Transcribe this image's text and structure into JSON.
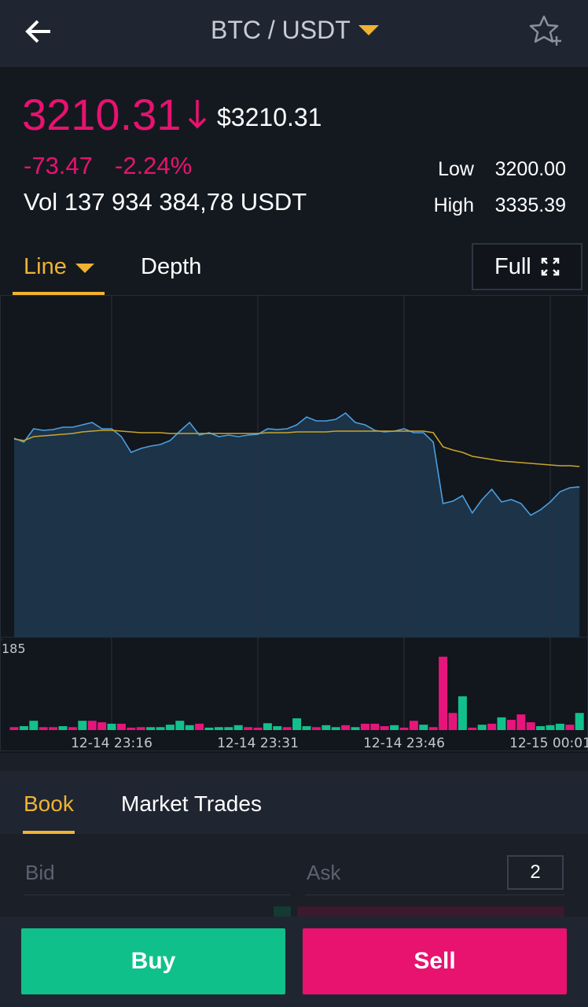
{
  "header": {
    "title": "BTC / USDT"
  },
  "ticker": {
    "price": "3210.31",
    "price_usd": "$3210.31",
    "change": "-73.47",
    "change_pct": "-2.24%",
    "volume": "Vol 137 934 384,78 USDT",
    "low_label": "Low",
    "low": "3200.00",
    "high_label": "High",
    "high": "3335.39"
  },
  "chart_tabs": {
    "line": "Line",
    "depth": "Depth",
    "full": "Full"
  },
  "chart_data": [
    {
      "type": "line",
      "area": true,
      "categories": [
        null,
        null,
        null,
        null,
        null,
        null,
        null,
        null,
        null,
        null,
        "12-14 23:16",
        null,
        null,
        null,
        null,
        null,
        null,
        null,
        null,
        null,
        null,
        null,
        null,
        null,
        null,
        "12-14 23:31",
        null,
        null,
        null,
        null,
        null,
        null,
        null,
        null,
        null,
        null,
        null,
        null,
        null,
        null,
        "12-14 23:46",
        null,
        null,
        null,
        null,
        null,
        null,
        null,
        null,
        null,
        null,
        null,
        null,
        null,
        null,
        "12-15 00:01",
        null,
        null,
        null
      ],
      "ylim": [
        3162.5,
        3271.25
      ],
      "series": [
        {
          "color": "#4a9fe0",
          "fill": "#1c3348",
          "values": [
            3225.75,
            3224.5,
            3228.75,
            3228.25,
            3228.5,
            3229.25,
            3229.25,
            3230,
            3230.75,
            3228.75,
            3228.75,
            3226.25,
            3221.25,
            3222.5,
            3223.25,
            3223.75,
            3225,
            3228,
            3230.75,
            3226.75,
            3227.5,
            3226.25,
            3226.75,
            3226.25,
            3226.75,
            3227,
            3228.75,
            3228.5,
            3228.75,
            3230,
            3232.5,
            3231.25,
            3231.25,
            3231.75,
            3233.75,
            3230.75,
            3230,
            3228.25,
            3227.75,
            3228,
            3228.75,
            3227.5,
            3227.5,
            3224.5,
            3205,
            3205.75,
            3207.5,
            3202,
            3206.25,
            3209.5,
            3205.5,
            3206.25,
            3205,
            3201.25,
            3203,
            3205.5,
            3208.75,
            3210,
            3210.31
          ]
        },
        {
          "color": "#c9a52c",
          "values": [
            3225.5,
            3225,
            3226.25,
            3226.5,
            3226.75,
            3227,
            3227.25,
            3227.75,
            3228,
            3228.25,
            3228.25,
            3228,
            3227.75,
            3227.5,
            3227.5,
            3227.5,
            3227.25,
            3227.25,
            3227.25,
            3227.25,
            3227.25,
            3227.25,
            3227.25,
            3227.25,
            3227.25,
            3227.25,
            3227.5,
            3227.5,
            3227.5,
            3227.75,
            3227.75,
            3227.75,
            3227.75,
            3228,
            3228,
            3228,
            3228,
            3228,
            3228,
            3228,
            3228,
            3228,
            3228,
            3227.5,
            3223,
            3222,
            3221.25,
            3220,
            3219.5,
            3219,
            3218.5,
            3218.25,
            3218,
            3217.75,
            3217.5,
            3217.25,
            3217,
            3217,
            3216.75
          ]
        }
      ]
    },
    {
      "type": "bar",
      "ylim": [
        0,
        185
      ],
      "yticks": [
        185
      ],
      "values": [
        6,
        8,
        19,
        6,
        6,
        8,
        6,
        19,
        19,
        16,
        13,
        13,
        5,
        6,
        6,
        6,
        11,
        19,
        10,
        13,
        5,
        6,
        6,
        10,
        6,
        5,
        14,
        8,
        6,
        24,
        8,
        6,
        10,
        6,
        10,
        6,
        13,
        13,
        8,
        10,
        5,
        19,
        11,
        6,
        150,
        35,
        69,
        5,
        11,
        13,
        26,
        21,
        32,
        16,
        8,
        10,
        13,
        11,
        35
      ],
      "colors": [
        "#e6157b",
        "#12c08b",
        "#12c08b",
        "#e6157b",
        "#e6157b",
        "#12c08b",
        "#e6157b",
        "#12c08b",
        "#e6157b",
        "#e6157b",
        "#12c08b",
        "#e6157b",
        "#e6157b",
        "#e6157b",
        "#12c08b",
        "#12c08b",
        "#12c08b",
        "#12c08b",
        "#12c08b",
        "#e6157b",
        "#12c08b",
        "#12c08b",
        "#12c08b",
        "#12c08b",
        "#e6157b",
        "#e6157b",
        "#12c08b",
        "#12c08b",
        "#e6157b",
        "#12c08b",
        "#12c08b",
        "#e6157b",
        "#12c08b",
        "#12c08b",
        "#e6157b",
        "#12c08b",
        "#e6157b",
        "#e6157b",
        "#e6157b",
        "#12c08b",
        "#e6157b",
        "#e6157b",
        "#12c08b",
        "#e6157b",
        "#e6157b",
        "#e6157b",
        "#12c08b",
        "#e6157b",
        "#12c08b",
        "#e6157b",
        "#12c08b",
        "#e6157b",
        "#e6157b",
        "#e6157b",
        "#12c08b",
        "#12c08b",
        "#12c08b",
        "#e6157b",
        "#12c08b"
      ]
    }
  ],
  "book_tabs": {
    "book": "Book",
    "market_trades": "Market Trades"
  },
  "book": {
    "bid": "Bid",
    "ask": "Ask",
    "depth": "2"
  },
  "actions": {
    "buy": "Buy",
    "sell": "Sell"
  }
}
